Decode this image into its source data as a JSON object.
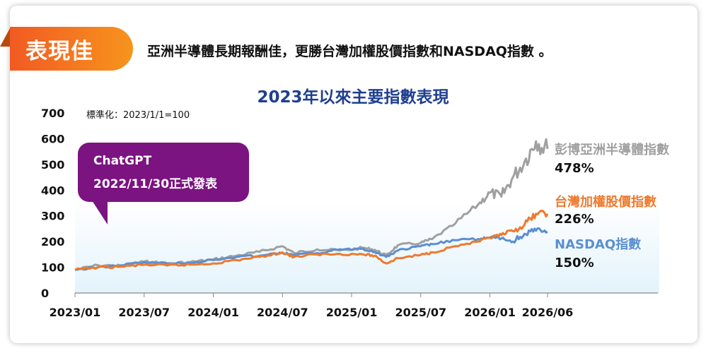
{
  "tag": "表現佳",
  "headline": "亞洲半導體長期報酬佳，更勝台灣加權股價指數和NASDAQ指數 。",
  "note": "標準化：2023/1/1=100",
  "callout": {
    "line1": "ChatGPT",
    "line2": "2022/11/30正式發表"
  },
  "colors": {
    "semis": "#a0a0a0",
    "taiex": "#ee7a2e",
    "nasdaq": "#5b8fd0",
    "title": "#1f3f8f",
    "callout": "#7b1380"
  },
  "chart_data": {
    "type": "line",
    "title": "2023年以來主要指數表現",
    "ylim": [
      0,
      700
    ],
    "yticks": [
      "0",
      "100",
      "200",
      "300",
      "400",
      "500",
      "600",
      "700"
    ],
    "xlim": [
      "2023/01",
      "2026/06"
    ],
    "xticks": [
      "2023/01",
      "2023/07",
      "2024/01",
      "2024/07",
      "2025/01",
      "2025/07",
      "2026/01",
      "2026/06"
    ],
    "grid": false,
    "series": [
      {
        "name": "彭博亞洲半導體指數",
        "return_label": "478%",
        "points": [
          [
            "2023/01",
            90
          ],
          [
            "2023/03",
            108
          ],
          [
            "2023/05",
            105
          ],
          [
            "2023/07",
            122
          ],
          [
            "2023/09",
            115
          ],
          [
            "2023/11",
            120
          ],
          [
            "2024/01",
            130
          ],
          [
            "2024/03",
            145
          ],
          [
            "2024/05",
            160
          ],
          [
            "2024/07",
            182
          ],
          [
            "2024/08",
            155
          ],
          [
            "2024/10",
            170
          ],
          [
            "2024/12",
            165
          ],
          [
            "2025/02",
            175
          ],
          [
            "2025/03",
            168
          ],
          [
            "2025/04",
            145
          ],
          [
            "2025/05",
            185
          ],
          [
            "2025/07",
            195
          ],
          [
            "2025/08",
            210
          ],
          [
            "2025/10",
            270
          ],
          [
            "2025/12",
            345
          ],
          [
            "2026/01",
            390
          ],
          [
            "2026/02",
            375
          ],
          [
            "2026/03",
            450
          ],
          [
            "2026/04",
            510
          ],
          [
            "2026/05",
            590
          ],
          [
            "2026/06",
            560
          ]
        ]
      },
      {
        "name": "台灣加權股價指數",
        "return_label": "226%",
        "points": [
          [
            "2023/01",
            90
          ],
          [
            "2023/03",
            100
          ],
          [
            "2023/05",
            102
          ],
          [
            "2023/07",
            110
          ],
          [
            "2023/09",
            107
          ],
          [
            "2023/11",
            110
          ],
          [
            "2024/01",
            115
          ],
          [
            "2024/03",
            128
          ],
          [
            "2024/05",
            140
          ],
          [
            "2024/07",
            158
          ],
          [
            "2024/08",
            140
          ],
          [
            "2024/10",
            150
          ],
          [
            "2024/12",
            152
          ],
          [
            "2025/02",
            150
          ],
          [
            "2025/03",
            145
          ],
          [
            "2025/04",
            115
          ],
          [
            "2025/05",
            135
          ],
          [
            "2025/07",
            148
          ],
          [
            "2025/08",
            158
          ],
          [
            "2025/10",
            182
          ],
          [
            "2025/12",
            200
          ],
          [
            "2026/01",
            215
          ],
          [
            "2026/02",
            225
          ],
          [
            "2026/03",
            240
          ],
          [
            "2026/04",
            265
          ],
          [
            "2026/05",
            308
          ],
          [
            "2026/06",
            308
          ]
        ]
      },
      {
        "name": "NASDAQ指數",
        "return_label": "150%",
        "points": [
          [
            "2023/01",
            90
          ],
          [
            "2023/03",
            100
          ],
          [
            "2023/05",
            108
          ],
          [
            "2023/07",
            120
          ],
          [
            "2023/09",
            115
          ],
          [
            "2023/11",
            118
          ],
          [
            "2024/01",
            128
          ],
          [
            "2024/03",
            140
          ],
          [
            "2024/05",
            145
          ],
          [
            "2024/07",
            155
          ],
          [
            "2024/08",
            148
          ],
          [
            "2024/10",
            155
          ],
          [
            "2024/12",
            170
          ],
          [
            "2025/02",
            172
          ],
          [
            "2025/03",
            160
          ],
          [
            "2025/04",
            140
          ],
          [
            "2025/05",
            165
          ],
          [
            "2025/07",
            182
          ],
          [
            "2025/08",
            190
          ],
          [
            "2025/10",
            205
          ],
          [
            "2025/12",
            210
          ],
          [
            "2026/01",
            215
          ],
          [
            "2026/02",
            212
          ],
          [
            "2026/03",
            200
          ],
          [
            "2026/04",
            230
          ],
          [
            "2026/05",
            242
          ],
          [
            "2026/06",
            238
          ]
        ]
      }
    ]
  }
}
